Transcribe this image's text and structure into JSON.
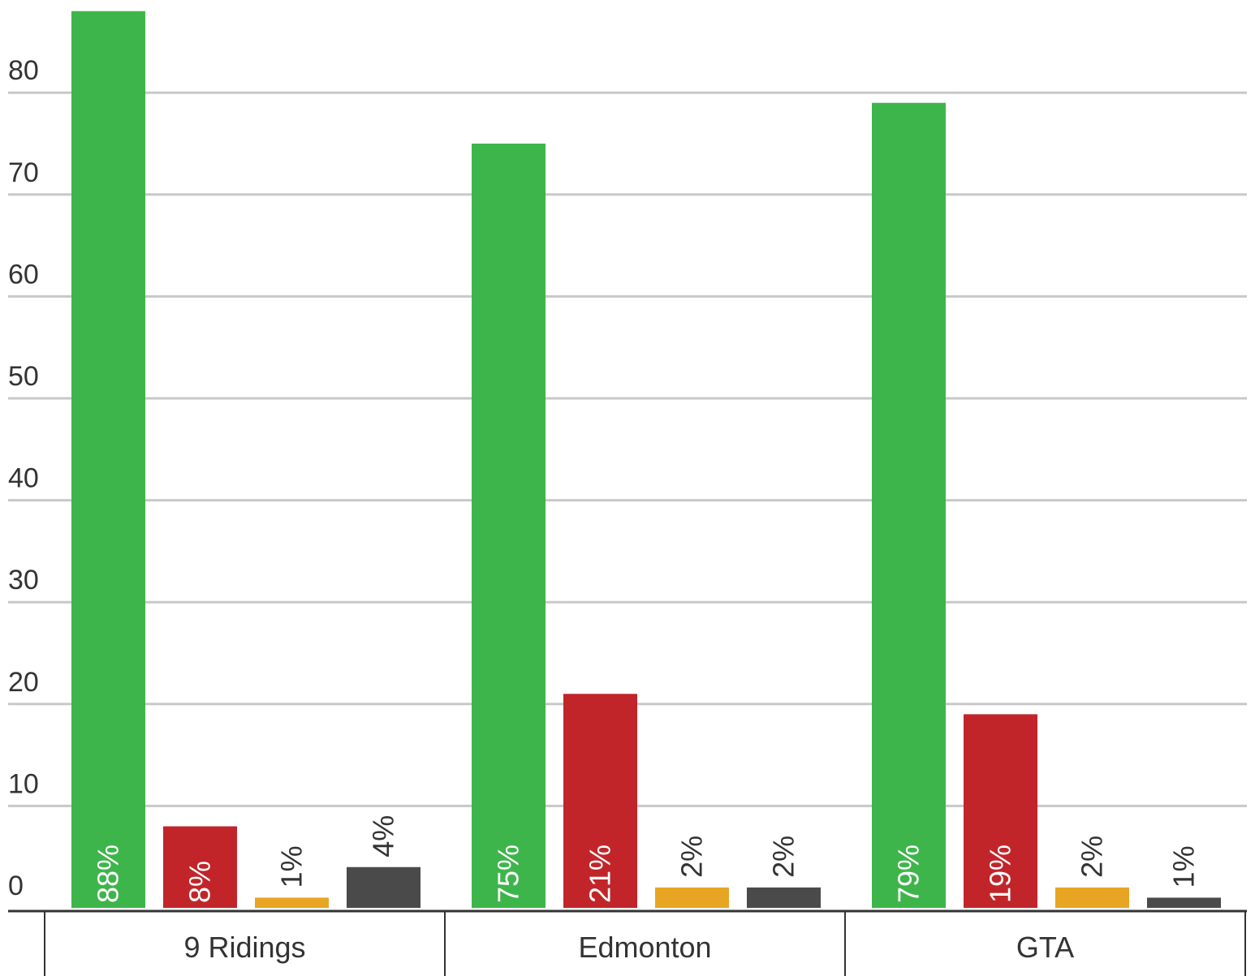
{
  "chart_data": {
    "type": "bar",
    "categories": [
      "9 Ridings",
      "Edmonton",
      "GTA"
    ],
    "series": [
      {
        "values": [
          88,
          75,
          79
        ],
        "color": "#3eb54b",
        "labels": [
          "88%",
          "75%",
          "79%"
        ],
        "label_inside": true
      },
      {
        "values": [
          8,
          21,
          19
        ],
        "color": "#c1252a",
        "labels": [
          "8%",
          "21%",
          "19%"
        ],
        "label_inside": true
      },
      {
        "values": [
          1,
          2,
          2
        ],
        "color": "#e8a524",
        "labels": [
          "1%",
          "2%",
          "2%"
        ],
        "label_inside": false
      },
      {
        "values": [
          4,
          2,
          1
        ],
        "color": "#4a4a4a",
        "labels": [
          "4%",
          "2%",
          "1%"
        ],
        "label_inside": false
      }
    ],
    "y_ticks": [
      0,
      10,
      20,
      30,
      40,
      50,
      60,
      70,
      80
    ],
    "ylim": [
      0,
      88
    ],
    "grid": true,
    "legend": "none",
    "title": "",
    "xlabel": "",
    "ylabel": ""
  }
}
